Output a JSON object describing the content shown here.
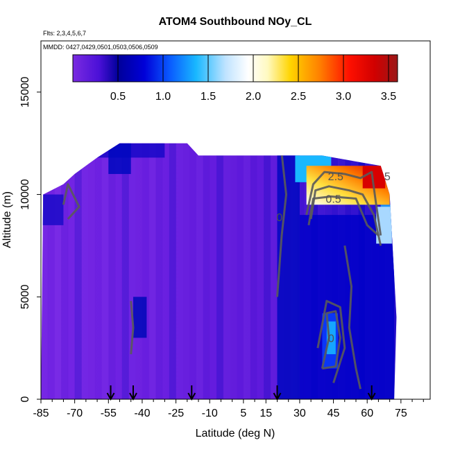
{
  "chart_data": {
    "type": "heatmap",
    "title": "ATOM4 Southbound NOy_CL",
    "flights_label": "Flts: 2,3,4,5,6,7",
    "dates_label": "MMDD: 0427,0429,0501,0503,0506,0509",
    "xlabel": "Latitude (deg N)",
    "ylabel": "Altitude (m)",
    "xlim": [
      -85,
      88
    ],
    "ylim": [
      0,
      17500
    ],
    "x_ticks": [
      -85,
      -70,
      -55,
      -40,
      -25,
      -10,
      5,
      15,
      30,
      45,
      60,
      75
    ],
    "y_ticks": [
      0,
      5000,
      10000,
      15000
    ],
    "colorbar": {
      "range": [
        0,
        3.6
      ],
      "ticks": [
        0.5,
        1.0,
        1.5,
        2.0,
        2.5,
        3.0,
        3.5
      ],
      "tick_labels": [
        "0.5",
        "1.0",
        "1.5",
        "2.0",
        "2.5",
        "3.0",
        "3.5"
      ]
    },
    "arrows_latitude": [
      -54,
      -44,
      -18,
      20,
      62
    ],
    "contour_labels": [
      {
        "text": "2.5",
        "lat": 46,
        "alt": 10700
      },
      {
        "text": "0.5",
        "lat": 45,
        "alt": 9600
      },
      {
        "text": "5",
        "lat": 69,
        "alt": 10700
      },
      {
        "text": "0",
        "lat": 21,
        "alt": 8700
      },
      {
        "text": "0",
        "lat": 44,
        "alt": 2800
      }
    ],
    "data_region": {
      "altitude_top_by_latitude": [
        {
          "lat": -85,
          "alt": 0
        },
        {
          "lat": -84,
          "alt": 10000
        },
        {
          "lat": -75,
          "alt": 10500
        },
        {
          "lat": -70,
          "alt": 11000
        },
        {
          "lat": -60,
          "alt": 11800
        },
        {
          "lat": -50,
          "alt": 12500
        },
        {
          "lat": -20,
          "alt": 12500
        },
        {
          "lat": -15,
          "alt": 11900
        },
        {
          "lat": 40,
          "alt": 11900
        },
        {
          "lat": 66,
          "alt": 11400
        },
        {
          "lat": 70,
          "alt": 10000
        },
        {
          "lat": 71,
          "alt": 8000
        },
        {
          "lat": 73,
          "alt": 4000
        },
        {
          "lat": 72,
          "alt": 0
        }
      ]
    }
  }
}
